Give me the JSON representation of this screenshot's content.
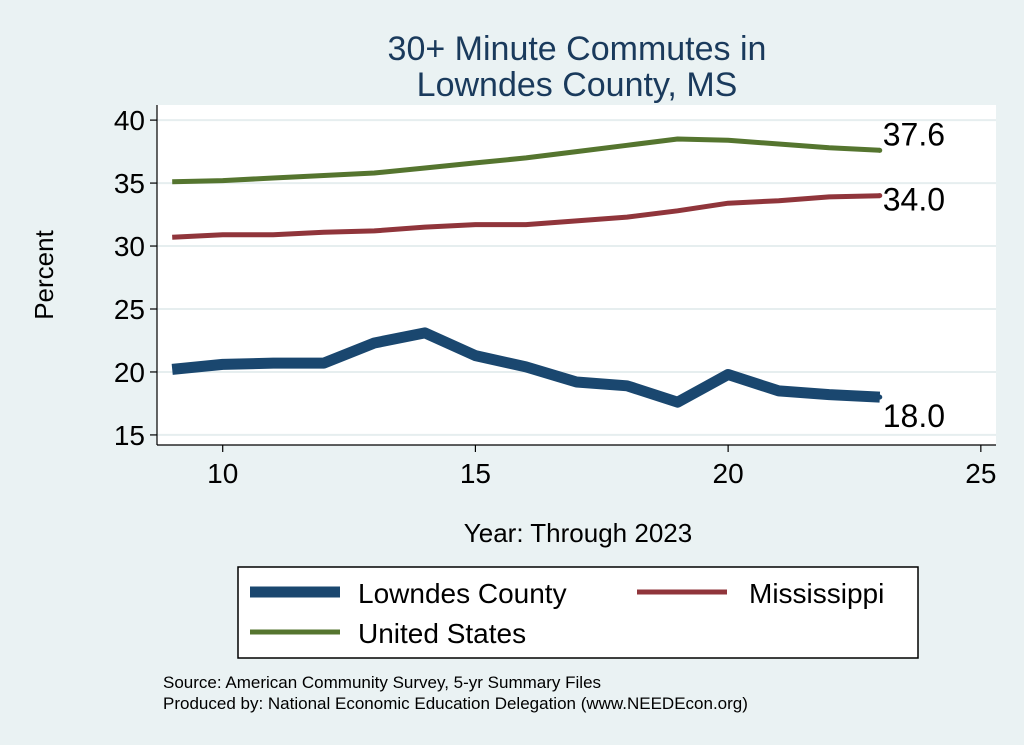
{
  "chart_data": {
    "type": "line",
    "title_lines": [
      "30+ Minute Commutes in",
      "Lowndes County, MS"
    ],
    "xlabel": "Year: Through 2023",
    "ylabel": "Percent",
    "xlim": [
      8.7,
      25.3
    ],
    "ylim": [
      14.2,
      41.2
    ],
    "xticks": [
      10,
      15,
      20,
      25
    ],
    "yticks": [
      15,
      20,
      25,
      30,
      35,
      40
    ],
    "x": [
      9,
      10,
      11,
      12,
      13,
      14,
      15,
      16,
      17,
      18,
      19,
      20,
      21,
      22,
      23
    ],
    "series": [
      {
        "name": "Lowndes County",
        "color": "#1a476f",
        "values": [
          20.2,
          20.6,
          20.7,
          20.7,
          22.3,
          23.1,
          21.3,
          20.4,
          19.2,
          18.9,
          17.6,
          19.8,
          18.5,
          18.2,
          18.0
        ],
        "end_label": "18.0"
      },
      {
        "name": "Mississippi",
        "color": "#90353b",
        "values": [
          30.7,
          30.9,
          30.9,
          31.1,
          31.2,
          31.5,
          31.7,
          31.7,
          32.0,
          32.3,
          32.8,
          33.4,
          33.6,
          33.9,
          34.0
        ],
        "end_label": "34.0"
      },
      {
        "name": "United States",
        "color": "#55752f",
        "values": [
          35.1,
          35.2,
          35.4,
          35.6,
          35.8,
          36.2,
          36.6,
          37.0,
          37.5,
          38.0,
          38.5,
          38.4,
          38.1,
          37.8,
          37.6
        ],
        "end_label": "37.6"
      }
    ],
    "legend": [
      "Lowndes County",
      "Mississippi",
      "United States"
    ],
    "legend_position": "bottom",
    "grid": true
  },
  "source_lines": [
    "Source: American Community Survey, 5-yr Summary Files",
    "Produced by: National Economic Education Delegation (www.NEEDEcon.org)"
  ]
}
